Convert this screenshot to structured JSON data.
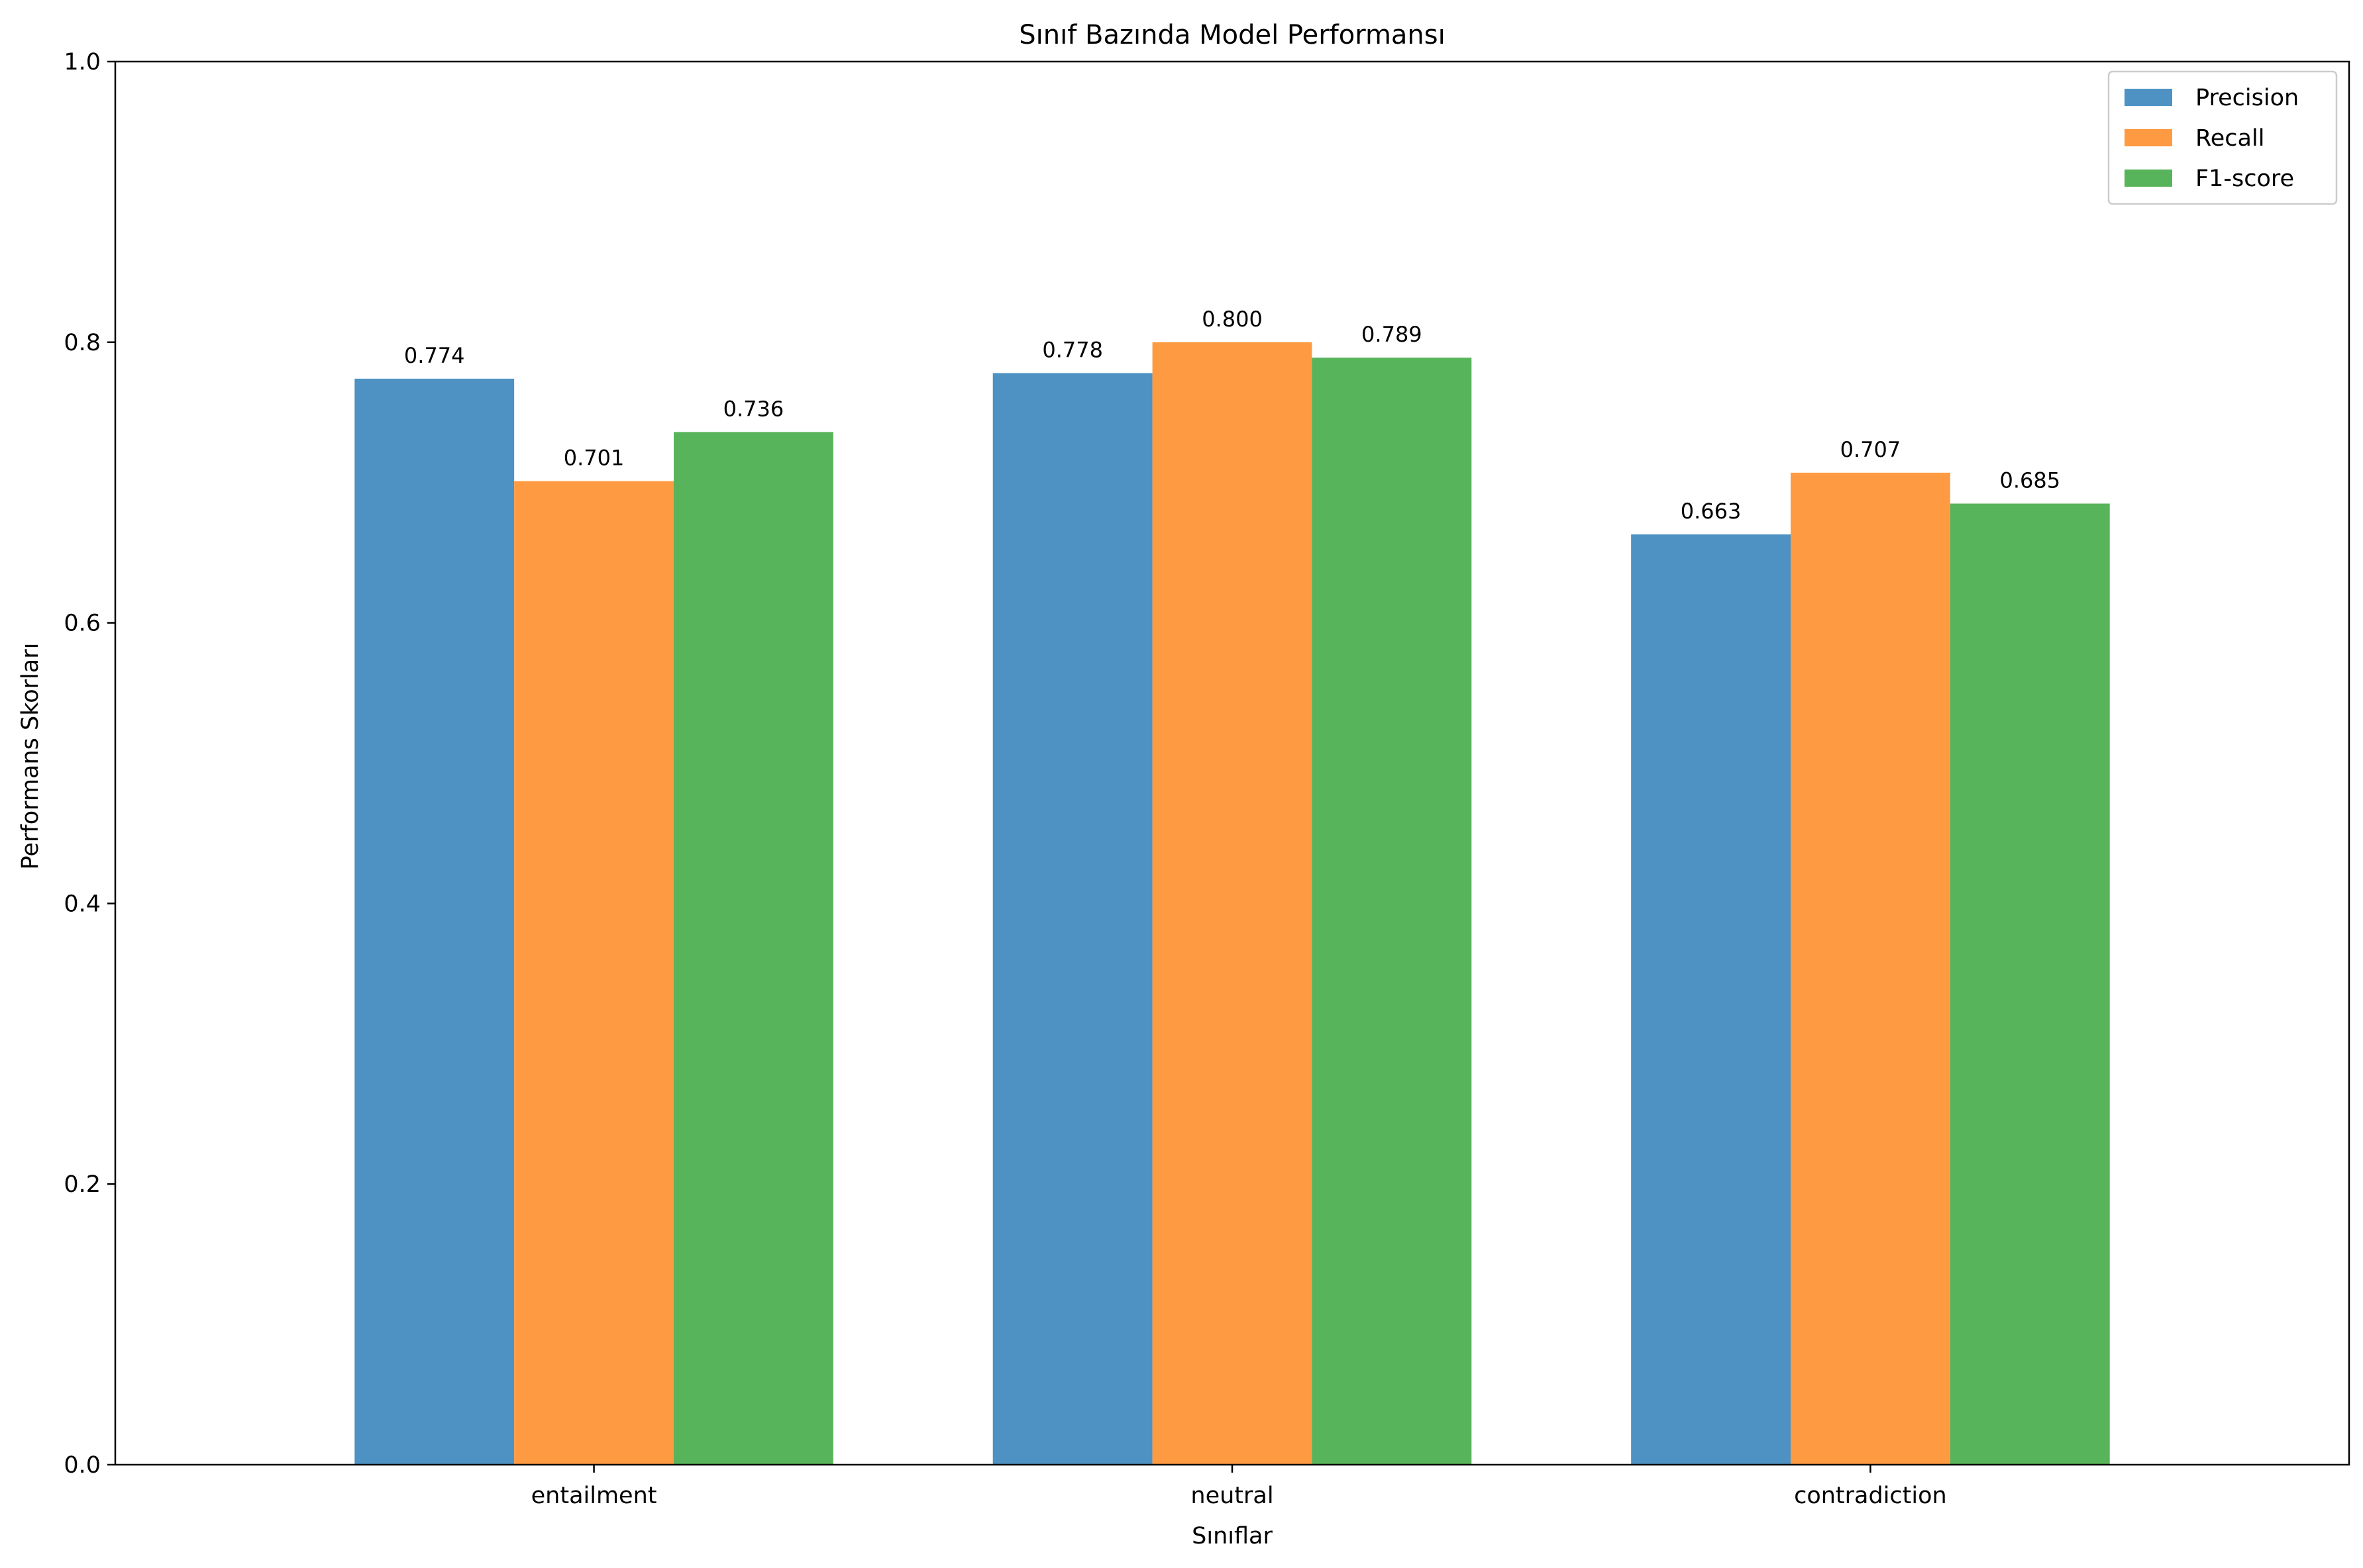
{
  "chart_data": {
    "type": "bar",
    "title": "Sınıf Bazında Model Performansı",
    "xlabel": "Sınıflar",
    "ylabel": "Performans Skorları",
    "categories": [
      "entailment",
      "neutral",
      "contradiction"
    ],
    "series": [
      {
        "name": "Precision",
        "values": [
          0.774,
          0.778,
          0.663
        ],
        "color": "#4d92c3"
      },
      {
        "name": "Recall",
        "values": [
          0.701,
          0.8,
          0.707
        ],
        "color": "#fe9a42"
      },
      {
        "name": "F1-score",
        "values": [
          0.736,
          0.789,
          0.685
        ],
        "color": "#58b45a"
      }
    ],
    "data_labels": [
      [
        "0.774",
        "0.701",
        "0.736"
      ],
      [
        "0.778",
        "0.800",
        "0.789"
      ],
      [
        "0.663",
        "0.707",
        "0.685"
      ]
    ],
    "ylim": [
      0,
      1.0
    ],
    "yticks": [
      0.0,
      0.2,
      0.4,
      0.6,
      0.8,
      1.0
    ],
    "ytick_labels": [
      "0.0",
      "0.2",
      "0.4",
      "0.6",
      "0.8",
      "1.0"
    ],
    "grid": false,
    "legend_position": "top-right"
  }
}
